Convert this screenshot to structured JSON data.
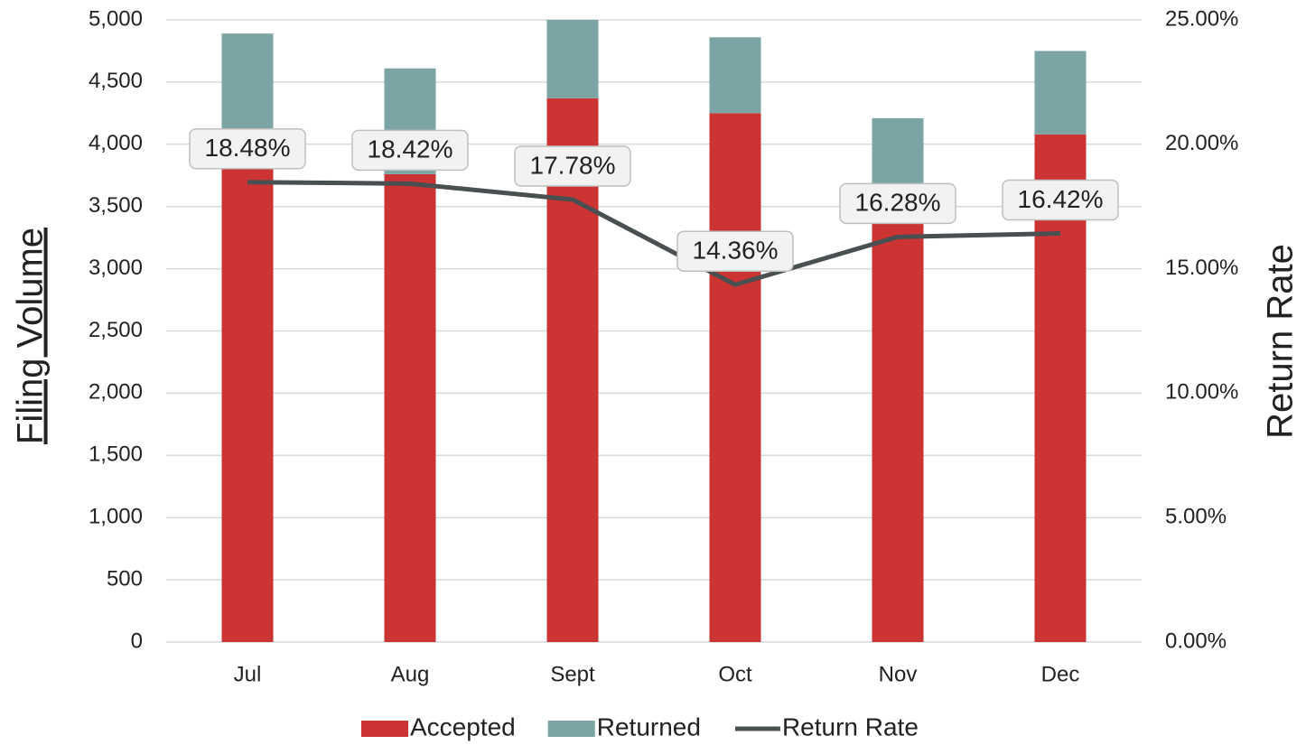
{
  "chart_data": {
    "type": "bar_line",
    "categories": [
      "Jul",
      "Aug",
      "Sept",
      "Oct",
      "Nov",
      "Dec"
    ],
    "y_label": "Filing Volume",
    "y2_label": "Return Rate",
    "ylim": [
      0,
      5000
    ],
    "yticks": [
      0,
      500,
      {
        "value": 1000,
        "label": "1,000"
      },
      {
        "value": 1500,
        "label": "1,500"
      },
      {
        "value": 2000,
        "label": "2,000"
      },
      {
        "value": 2500,
        "label": "2,500"
      },
      {
        "value": 3000,
        "label": "3,000"
      },
      {
        "value": 3500,
        "label": "3,500"
      },
      {
        "value": 4000,
        "label": "4,000"
      },
      {
        "value": 4500,
        "label": "4,500"
      },
      {
        "value": 5000,
        "label": "5,000"
      }
    ],
    "y2lim": [
      0,
      25
    ],
    "y2ticks": [
      {
        "value": 0,
        "label": "0.00%"
      },
      {
        "value": 5,
        "label": "5.00%"
      },
      {
        "value": 10,
        "label": "10.00%"
      },
      {
        "value": 15,
        "label": "15.00%"
      },
      {
        "value": 20,
        "label": "20.00%"
      },
      {
        "value": 25,
        "label": "25.00%"
      }
    ],
    "grid": true,
    "legend": "bottom",
    "series": [
      {
        "name": "Accepted",
        "type": "bar",
        "color": "#cc3333",
        "values": [
          3990,
          3760,
          4370,
          4250,
          3520,
          4080
        ]
      },
      {
        "name": "Returned",
        "type": "bar",
        "color": "#7ba4a5",
        "values": [
          900,
          850,
          630,
          610,
          690,
          670
        ]
      },
      {
        "name": "Return Rate",
        "type": "line",
        "axis": "y2",
        "color": "#4a4f52",
        "values": [
          18.48,
          18.42,
          17.78,
          14.36,
          16.28,
          16.42
        ],
        "value_labels": [
          "18.48%",
          "18.42%",
          "17.78%",
          "14.36%",
          "16.28%",
          "16.42%"
        ]
      }
    ]
  }
}
